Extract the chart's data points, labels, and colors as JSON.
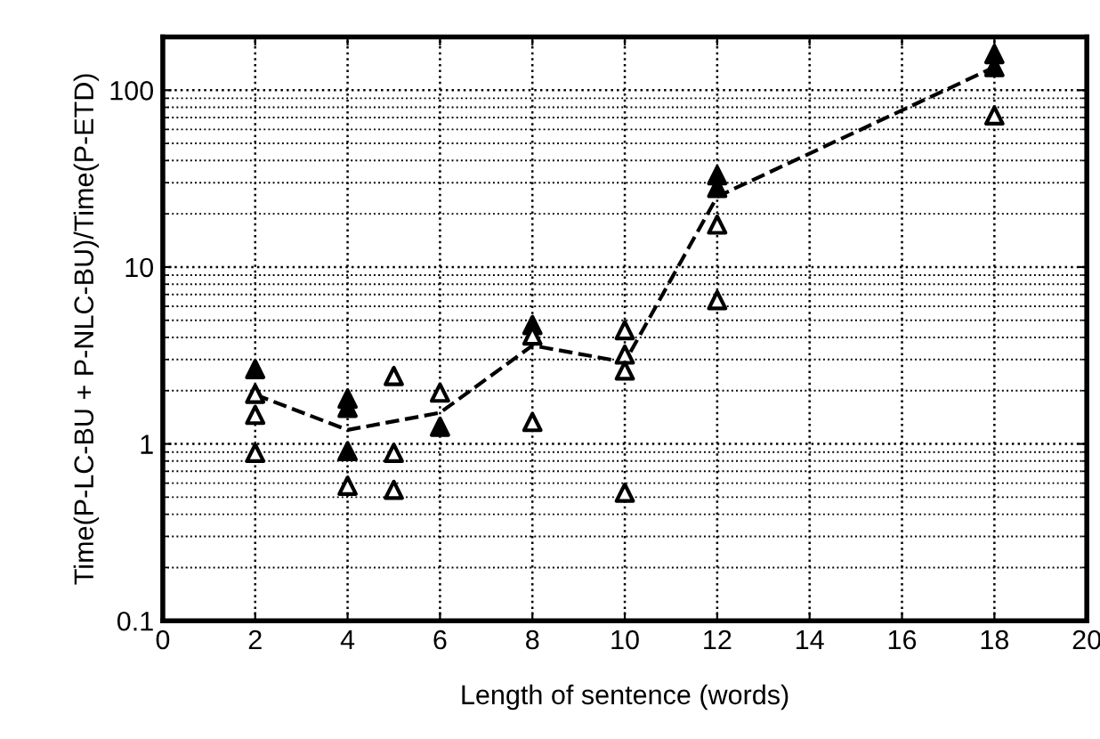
{
  "chart_data": {
    "type": "scatter",
    "xlabel": "Length of sentence (words)",
    "ylabel": "Time(P-LC-BU + P-NLC-BU)/Time(P-ETD)",
    "log": "y",
    "xlim": [
      0,
      20
    ],
    "xticks": [
      0,
      2,
      4,
      6,
      8,
      10,
      12,
      14,
      16,
      18,
      20
    ],
    "ylim": [
      0.1,
      200
    ],
    "yticks": [
      0.1,
      1,
      10,
      100
    ],
    "grid": true,
    "legend": false,
    "series": [
      {
        "color": "#000000",
        "marker": "triangle",
        "x": [
          2,
          4,
          4,
          4,
          6,
          8,
          12,
          12,
          18,
          18
        ],
        "values": [
          2.65,
          1.8,
          1.6,
          0.91,
          1.25,
          4.7,
          33,
          28,
          160,
          135
        ]
      },
      {
        "color": "#ffffff",
        "marker": "triangle",
        "x": [
          2,
          2,
          2,
          4,
          5,
          5,
          5,
          6,
          8,
          8,
          10,
          10,
          10,
          10,
          12,
          12,
          18
        ],
        "values": [
          1.92,
          1.46,
          0.89,
          0.58,
          2.42,
          0.89,
          0.55,
          1.95,
          1.33,
          4.1,
          4.4,
          3.2,
          2.6,
          0.53,
          17.4,
          6.5,
          72
        ]
      },
      {
        "type": "line",
        "color": "#000000",
        "marker": "none",
        "line_style": "dashed",
        "x": [
          2,
          4,
          6,
          8,
          10,
          12,
          18
        ],
        "values": [
          1.9,
          1.2,
          1.5,
          3.6,
          2.9,
          25,
          135
        ]
      }
    ]
  }
}
